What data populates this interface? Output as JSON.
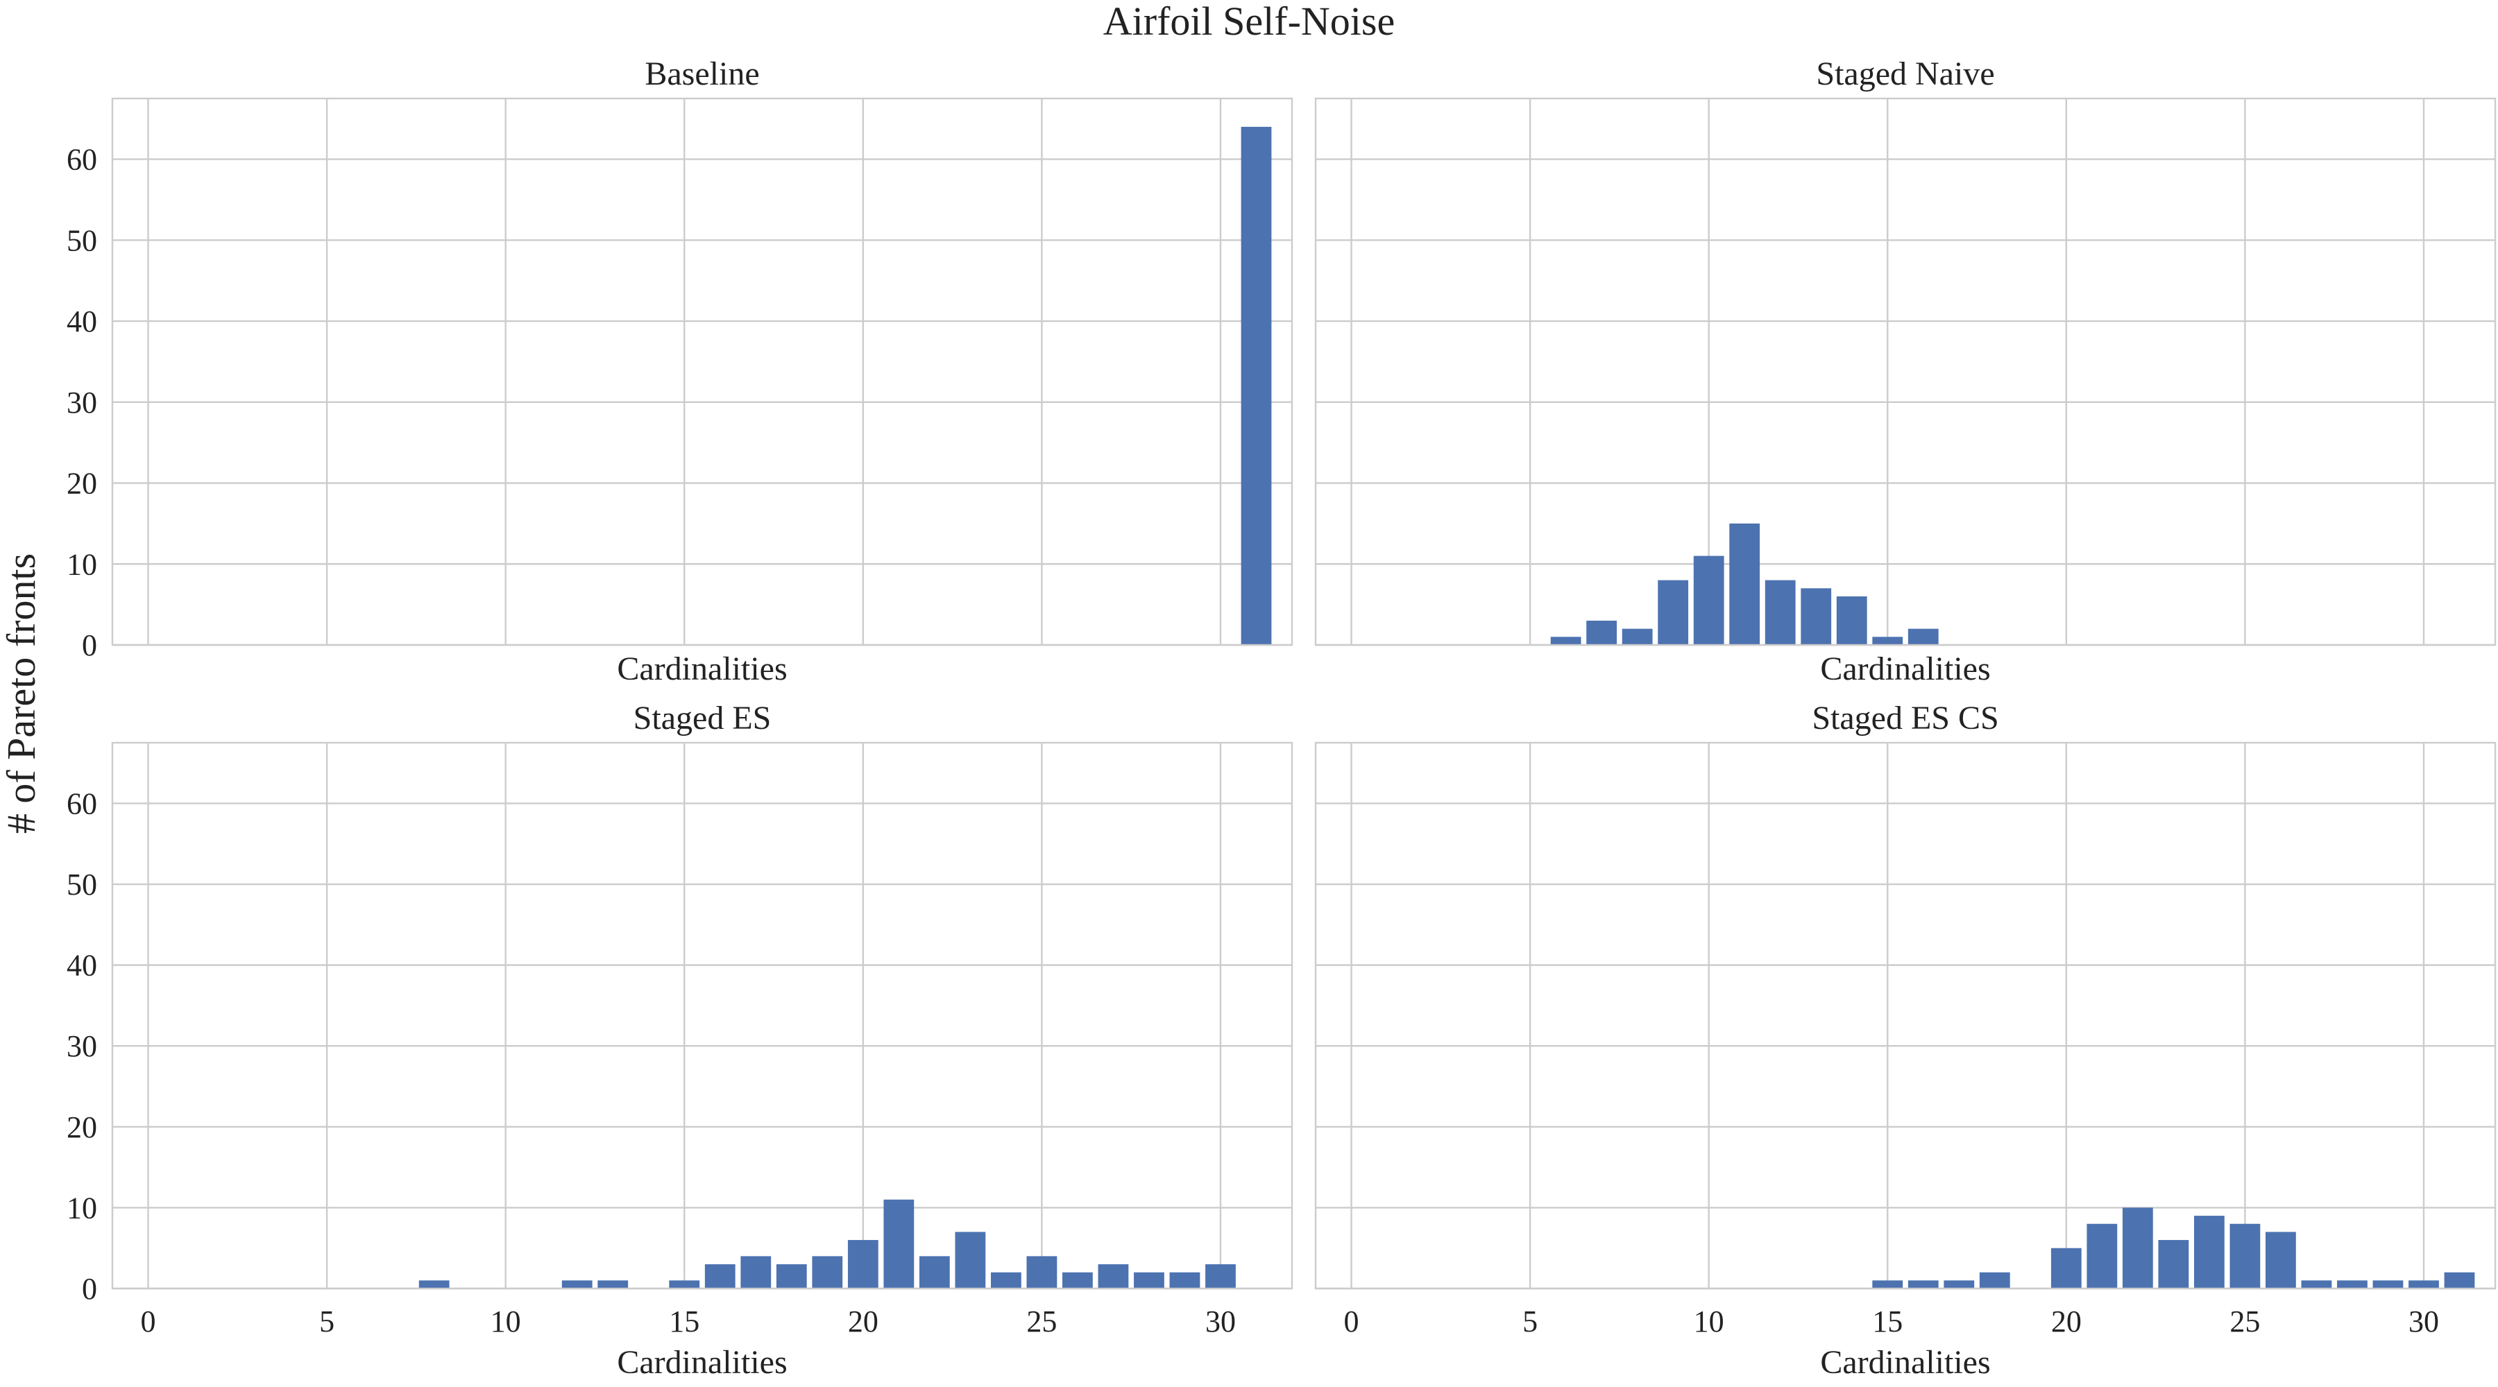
{
  "chart_data": {
    "suptitle": "Airfoil Self-Noise",
    "ylabel": "# of Pareto fronts",
    "xlabel": "Cardinalities",
    "xlim": [
      -1,
      32
    ],
    "ylim": [
      0,
      67.5
    ],
    "xticks": [
      0,
      5,
      10,
      15,
      20,
      25,
      30
    ],
    "yticks": [
      0,
      10,
      20,
      30,
      40,
      50,
      60
    ],
    "grid": true,
    "bar_color": "#4c72b0",
    "subplots": [
      {
        "type": "bar",
        "title": "Baseline",
        "x": [
          31
        ],
        "values": [
          64
        ],
        "show_xticks": false,
        "show_yticks": true
      },
      {
        "type": "bar",
        "title": "Staged Naive",
        "x": [
          6,
          7,
          8,
          9,
          10,
          11,
          12,
          13,
          14,
          15,
          16
        ],
        "values": [
          1,
          3,
          2,
          8,
          11,
          15,
          8,
          7,
          6,
          1,
          2
        ],
        "show_xticks": false,
        "show_yticks": false
      },
      {
        "type": "bar",
        "title": "Staged ES",
        "x": [
          8,
          12,
          13,
          15,
          16,
          17,
          18,
          19,
          20,
          21,
          22,
          23,
          24,
          25,
          26,
          27,
          28,
          29,
          30
        ],
        "values": [
          1,
          1,
          1,
          1,
          3,
          4,
          3,
          4,
          6,
          11,
          4,
          7,
          2,
          4,
          2,
          3,
          2,
          2,
          3
        ],
        "show_xticks": true,
        "show_yticks": true
      },
      {
        "type": "bar",
        "title": "Staged ES CS",
        "x": [
          15,
          16,
          17,
          18,
          20,
          21,
          22,
          23,
          24,
          25,
          26,
          27,
          28,
          29,
          30,
          31
        ],
        "values": [
          1,
          1,
          1,
          2,
          5,
          8,
          10,
          6,
          9,
          8,
          7,
          1,
          1,
          1,
          1,
          2
        ],
        "show_xticks": true,
        "show_yticks": false
      }
    ]
  }
}
